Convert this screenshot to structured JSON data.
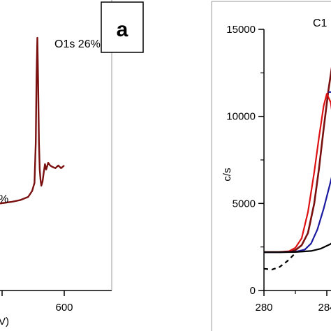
{
  "chart_data": [
    {
      "type": "line",
      "panel_label": "a",
      "annotations": [
        {
          "text": "O1s 26%",
          "x": 543,
          "y": 93
        },
        {
          "text": "%",
          "x": 300,
          "y": 60
        }
      ],
      "xlabel_fragment": "V)",
      "x_ticks": [
        "600"
      ],
      "x_tick_values": [
        600
      ],
      "xlim": [
        200,
        680
      ],
      "ylim": [
        0,
        100
      ],
      "series": [
        {
          "color": "#7a1010",
          "points": [
            [
              200,
              31
            ],
            [
              215,
              30.5
            ],
            [
              230,
              31
            ],
            [
              250,
              30.5
            ],
            [
              270,
              31
            ],
            [
              290,
              30.7
            ],
            [
              310,
              31.2
            ],
            [
              330,
              31
            ],
            [
              350,
              31.6
            ],
            [
              370,
              31.4
            ],
            [
              390,
              31.8
            ],
            [
              410,
              32
            ],
            [
              430,
              32.2
            ],
            [
              450,
              32.6
            ],
            [
              470,
              33
            ],
            [
              490,
              33.6
            ],
            [
              510,
              34.8
            ],
            [
              520,
              37
            ],
            [
              526,
              40
            ],
            [
              529,
              55
            ],
            [
              531,
              79
            ],
            [
              533,
              94
            ],
            [
              535,
              78
            ],
            [
              537,
              55
            ],
            [
              539,
              45
            ],
            [
              541,
              41
            ],
            [
              543,
              39
            ],
            [
              546,
              40.5
            ],
            [
              549,
              44
            ],
            [
              552,
              47
            ],
            [
              555,
              45
            ],
            [
              560,
              47.5
            ],
            [
              565,
              46.5
            ],
            [
              570,
              46
            ],
            [
              578,
              45.5
            ],
            [
              585,
              46.5
            ],
            [
              592,
              45.5
            ],
            [
              600,
              46.5
            ]
          ]
        }
      ]
    },
    {
      "type": "line",
      "peak_label": "C1",
      "ylabel": "c/s",
      "yticks": [
        0,
        5000,
        10000,
        15000
      ],
      "y_tick_labels": [
        "0",
        "5000",
        "10000",
        "15000"
      ],
      "x_ticks": [
        "280",
        "284"
      ],
      "x_tick_values": [
        280,
        284
      ],
      "xlim": [
        280,
        294
      ],
      "ylim": [
        0,
        16000
      ],
      "series": [
        {
          "color": "#7a1010",
          "points": [
            [
              280,
              2200
            ],
            [
              281,
              2200
            ],
            [
              281.6,
              2230
            ],
            [
              282,
              2320
            ],
            [
              282.4,
              2600
            ],
            [
              282.8,
              3300
            ],
            [
              283.2,
              5000
            ],
            [
              283.5,
              7000
            ],
            [
              283.8,
              9300
            ],
            [
              284.1,
              11500
            ],
            [
              284.4,
              13300
            ],
            [
              284.7,
              14400
            ],
            [
              285.0,
              14800
            ],
            [
              285.3,
              14700
            ],
            [
              285.5,
              14300
            ]
          ]
        },
        {
          "color": "#dd1111",
          "points": [
            [
              280,
              2200
            ],
            [
              281,
              2210
            ],
            [
              281.6,
              2260
            ],
            [
              282,
              2450
            ],
            [
              282.4,
              3000
            ],
            [
              282.8,
              4500
            ],
            [
              283.2,
              6800
            ],
            [
              283.5,
              8800
            ],
            [
              283.8,
              10600
            ],
            [
              284.0,
              11300
            ],
            [
              284.25,
              10800
            ],
            [
              284.5,
              9200
            ],
            [
              284.8,
              7000
            ],
            [
              285.1,
              5000
            ],
            [
              285.4,
              3700
            ]
          ]
        },
        {
          "color": "#1a1aa0",
          "points": [
            [
              280,
              2200
            ],
            [
              281,
              2200
            ],
            [
              282,
              2220
            ],
            [
              282.6,
              2350
            ],
            [
              283.0,
              2700
            ],
            [
              283.4,
              3500
            ],
            [
              283.8,
              4700
            ],
            [
              284.2,
              6100
            ],
            [
              284.5,
              7200
            ],
            [
              284.8,
              8400
            ],
            [
              285.1,
              9700
            ],
            [
              285.4,
              10800
            ],
            [
              285.6,
              11400
            ]
          ]
        },
        {
          "color": "#1a1aa0",
          "points": [
            [
              284.1,
              11400
            ],
            [
              285.6,
              11400
            ]
          ]
        },
        {
          "color": "#000000",
          "points": [
            [
              280,
              2200
            ],
            [
              281,
              2200
            ],
            [
              282,
              2210
            ],
            [
              283,
              2270
            ],
            [
              283.6,
              2400
            ],
            [
              284.2,
              2650
            ],
            [
              284.8,
              3000
            ],
            [
              285.3,
              3300
            ],
            [
              285.6,
              3450
            ]
          ]
        },
        {
          "color": "#000000",
          "dashed": true,
          "points": [
            [
              280,
              1250
            ],
            [
              280.5,
              1200
            ],
            [
              281.0,
              1350
            ],
            [
              281.5,
              1700
            ],
            [
              282.0,
              2150
            ]
          ]
        }
      ]
    }
  ],
  "colors": {
    "axis": "#000000",
    "frame_gray": "#999999"
  }
}
